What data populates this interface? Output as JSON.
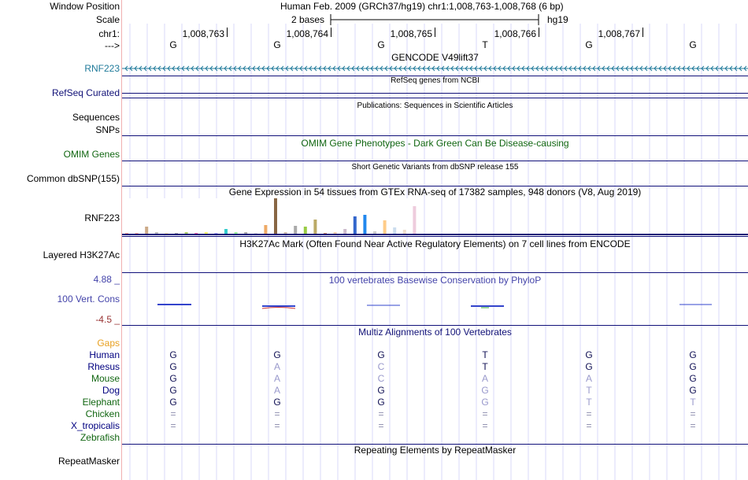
{
  "labels": {
    "window_position": "Window Position",
    "scale": "Scale",
    "chrom": "chr1:",
    "strand": "--->",
    "rnf223_gene": "RNF223",
    "refseq_curated": "RefSeq Curated",
    "sequences": "Sequences",
    "snps": "SNPs",
    "omim_genes": "OMIM Genes",
    "common_dbsnp": "Common dbSNP(155)",
    "rnf223_expr": "RNF223",
    "layered_h3k27ac": "Layered H3K27Ac",
    "cons_max": "4.88 _",
    "vert_cons": "100 Vert. Cons",
    "cons_min": "-4.5 _",
    "repeatmasker": "RepeatMasker"
  },
  "header": {
    "assembly_position": "Human Feb. 2009 (GRCh37/hg19)   chr1:1,008,763-1,008,768 (6 bp)",
    "scale_text": "2 bases",
    "scale_db": "hg19"
  },
  "coords": [
    "1,008,763",
    "1,008,764",
    "1,008,765",
    "1,008,766",
    "1,008,767"
  ],
  "bases": [
    "G",
    "G",
    "G",
    "T",
    "G",
    "G"
  ],
  "tracks": {
    "gencode": "GENCODE V49lift37",
    "refseq": "RefSeq genes from NCBI",
    "publications": "Publications: Sequences in Scientific Articles",
    "omim": "OMIM Gene Phenotypes - Dark Green Can Be Disease-causing",
    "dbsnp": "Short Genetic Variants from dbSNP release 155",
    "gtex": "Gene Expression in 54 tissues from GTEx RNA-seq of 17382 samples, 948 donors (V8, Aug 2019)",
    "h3k27ac": "H3K27Ac Mark (Often Found Near Active Regulatory Elements) on 7 cell lines from ENCODE",
    "phylop": "100 vertebrates Basewise Conservation by PhyloP",
    "multiz": "Multiz Alignments of 100 Vertebrates",
    "repeatmasker": "Repeating Elements by RepeatMasker"
  },
  "alignment": {
    "gaps_label": "Gaps",
    "species": [
      {
        "name": "Human",
        "color": "#000080",
        "bases": [
          "G",
          "G",
          "G",
          "T",
          "G",
          "G"
        ]
      },
      {
        "name": "Rhesus",
        "color": "#000080",
        "bases": [
          "G",
          "A",
          "C",
          "T",
          "G",
          "G"
        ]
      },
      {
        "name": "Mouse",
        "color": "#116611",
        "bases": [
          "G",
          "A",
          "C",
          "A",
          "A",
          "G"
        ]
      },
      {
        "name": "Dog",
        "color": "#000080",
        "bases": [
          "G",
          "A",
          "G",
          "G",
          "T",
          "G"
        ]
      },
      {
        "name": "Elephant",
        "color": "#116611",
        "bases": [
          "G",
          "G",
          "G",
          "G",
          "T",
          "T"
        ]
      },
      {
        "name": "Chicken",
        "color": "#116611",
        "bases": [
          "=",
          "=",
          "=",
          "=",
          "=",
          "="
        ]
      },
      {
        "name": "X_tropicalis",
        "color": "#000080",
        "bases": [
          "=",
          "=",
          "=",
          "=",
          "=",
          "="
        ]
      },
      {
        "name": "Zebrafish",
        "color": "#116611",
        "bases": [
          "",
          "",
          "",
          "",
          "",
          ""
        ]
      }
    ]
  },
  "gtex_expression": [
    {
      "color": "#ffaa99",
      "value": 1
    },
    {
      "color": "#ffaa99",
      "value": 1
    },
    {
      "color": "#ccaa88",
      "value": 20
    },
    {
      "color": "#bbbbbb",
      "value": 4
    },
    {
      "color": "#ffeeaa",
      "value": 3
    },
    {
      "color": "#aaaaaa",
      "value": 3
    },
    {
      "color": "#aacc66",
      "value": 4
    },
    {
      "color": "#ff66aa",
      "value": 2
    },
    {
      "color": "#ffff66",
      "value": 4
    },
    {
      "color": "#aaaaff",
      "value": 2
    },
    {
      "color": "#33cccc",
      "value": 13
    },
    {
      "color": "#99ff99",
      "value": 4
    },
    {
      "color": "#aaaaaa",
      "value": 4
    },
    {
      "color": "#dddddd",
      "value": 3
    },
    {
      "color": "#eeaa66",
      "value": 25
    },
    {
      "color": "#886644",
      "value": 100
    },
    {
      "color": "#ccbbaa",
      "value": 5
    },
    {
      "color": "#aaaaaa",
      "value": 22
    },
    {
      "color": "#99cc44",
      "value": 19
    },
    {
      "color": "#bbaa66",
      "value": 40
    },
    {
      "color": "#cc8866",
      "value": 3
    },
    {
      "color": "#eeccaa",
      "value": 5
    },
    {
      "color": "#ccbbcc",
      "value": 13
    },
    {
      "color": "#3366cc",
      "value": 48
    },
    {
      "color": "#2288ee",
      "value": 53
    },
    {
      "color": "#cccccc",
      "value": 6
    },
    {
      "color": "#ffcc88",
      "value": 38
    },
    {
      "color": "#ccddee",
      "value": 18
    },
    {
      "color": "#eeddcc",
      "value": 12
    },
    {
      "color": "#eeccdd",
      "value": 78
    }
  ],
  "colors": {
    "gencode": "#1f7a9a",
    "refseq": "#111177",
    "omim": "#116611",
    "cons_label": "#4444aa",
    "cons_neg": "#993333",
    "gaps": "#e8a020",
    "guide": "#d8d8f8",
    "divider": "#f0b0b0"
  }
}
